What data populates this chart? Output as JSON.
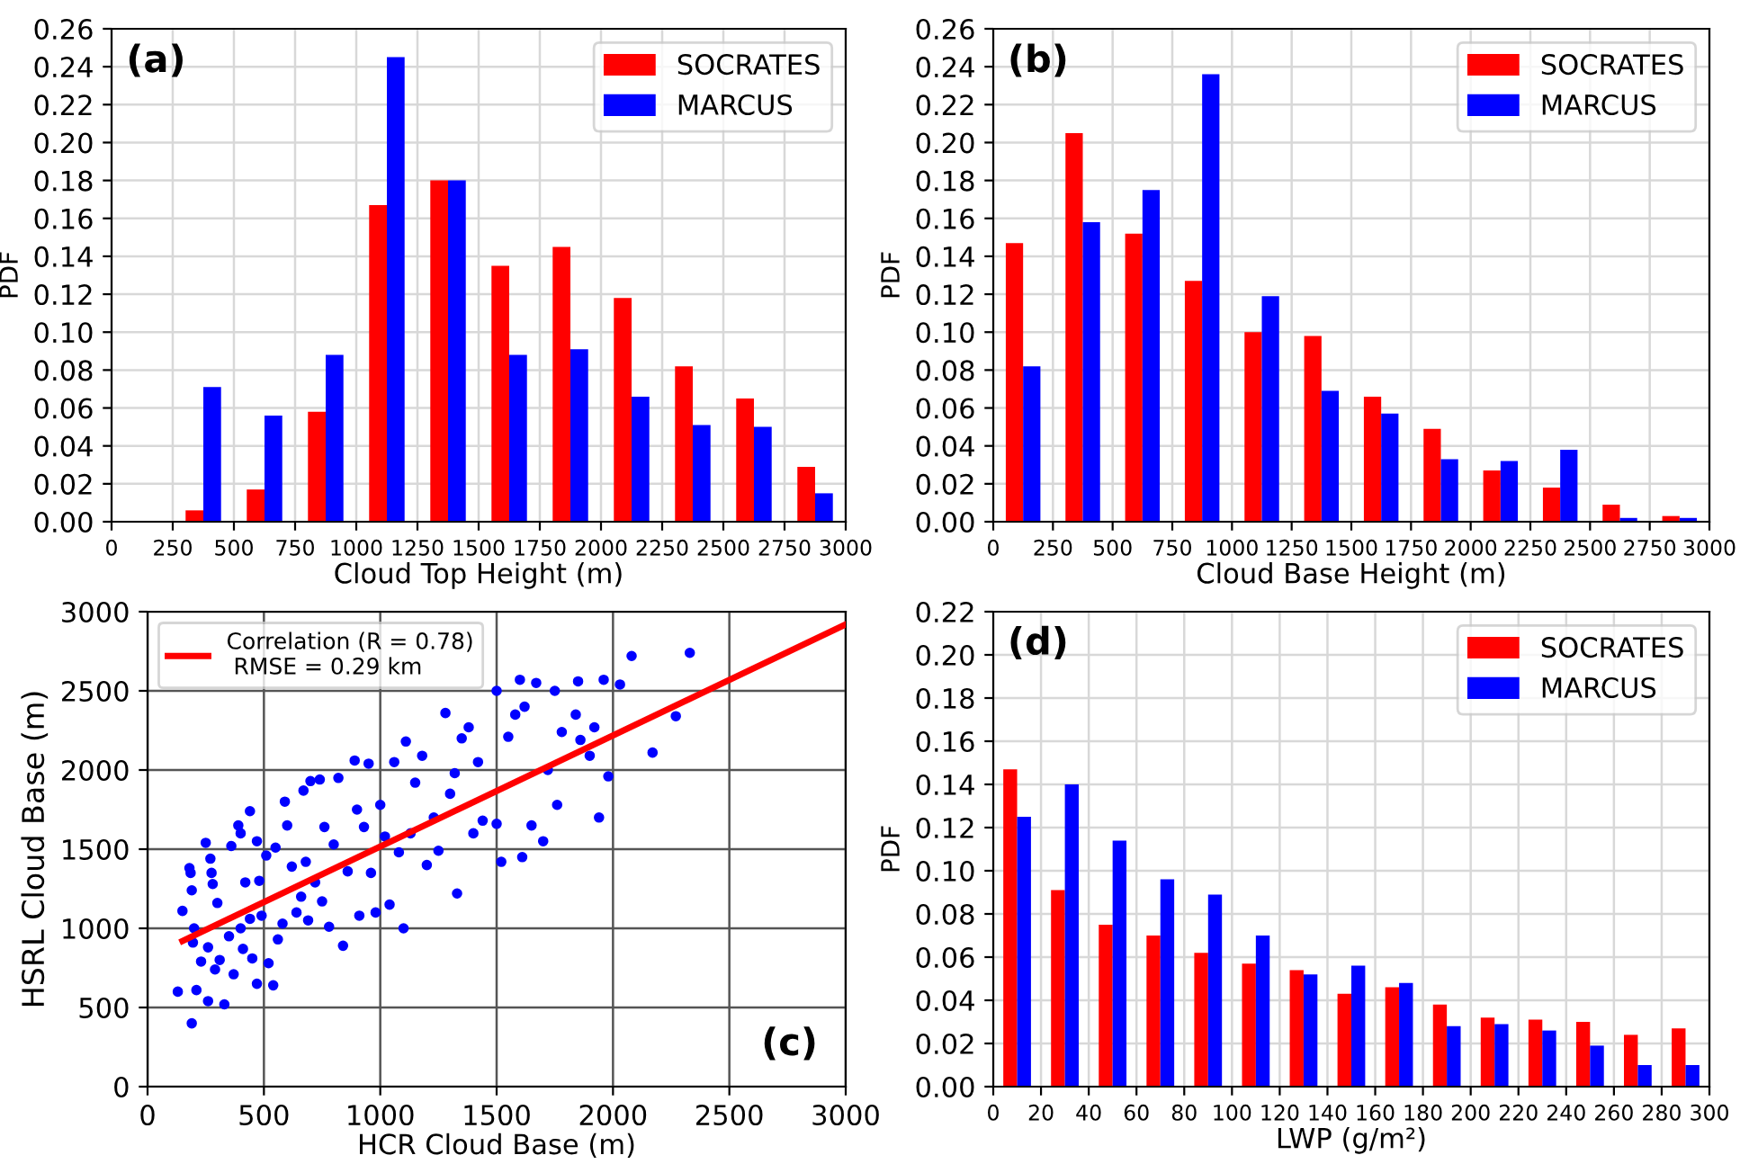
{
  "chart_data": [
    {
      "type": "bar",
      "xlabel": "Cloud Top Height (m)",
      "ylabel": "PDF",
      "annotations": [
        "(a)"
      ],
      "legend": "top right",
      "grid": true,
      "x": [
        375,
        625,
        875,
        1125,
        1375,
        1625,
        1875,
        2125,
        2375,
        2625,
        2875
      ],
      "series": [
        {
          "name": "SOCRATES",
          "color": "#ff0000",
          "values": [
            0.006,
            0.017,
            0.058,
            0.167,
            0.18,
            0.135,
            0.145,
            0.118,
            0.082,
            0.065,
            0.029
          ]
        },
        {
          "name": "MARCUS",
          "color": "#0000ff",
          "values": [
            0.071,
            0.056,
            0.088,
            0.245,
            0.18,
            0.088,
            0.091,
            0.066,
            0.051,
            0.05,
            0.015
          ]
        }
      ],
      "xlim": [
        0,
        3000
      ],
      "xticks": [
        0,
        250,
        500,
        750,
        1000,
        1250,
        1500,
        1750,
        2000,
        2250,
        2500,
        2750,
        3000
      ],
      "ylim": [
        0,
        0.26
      ],
      "yticks": [
        {
          "value": 0,
          "label": "0.00"
        },
        0.02,
        0.04,
        0.06,
        0.08,
        {
          "value": 0.1,
          "label": "0.10"
        },
        0.12,
        0.14,
        0.16,
        0.18,
        {
          "value": 0.2,
          "label": "0.20"
        },
        0.22,
        0.24,
        0.26
      ]
    },
    {
      "type": "bar",
      "xlabel": "Cloud Base Height (m)",
      "ylabel": "PDF",
      "annotations": [
        "(b)"
      ],
      "legend": "top right",
      "grid": true,
      "x": [
        125,
        375,
        625,
        875,
        1125,
        1375,
        1625,
        1875,
        2125,
        2375,
        2625,
        2875
      ],
      "series": [
        {
          "name": "SOCRATES",
          "color": "#ff0000",
          "values": [
            0.147,
            0.205,
            0.152,
            0.127,
            0.1,
            0.098,
            0.066,
            0.049,
            0.027,
            0.018,
            0.009,
            0.003
          ]
        },
        {
          "name": "MARCUS",
          "color": "#0000ff",
          "values": [
            0.082,
            0.158,
            0.175,
            0.236,
            0.119,
            0.069,
            0.057,
            0.033,
            0.032,
            0.038,
            0.002,
            0.002
          ]
        }
      ],
      "xlim": [
        0,
        3000
      ],
      "xticks": [
        0,
        250,
        500,
        750,
        1000,
        1250,
        1500,
        1750,
        2000,
        2250,
        2500,
        2750,
        3000
      ],
      "ylim": [
        0,
        0.26
      ],
      "yticks": [
        {
          "value": 0,
          "label": "0.00"
        },
        0.02,
        0.04,
        0.06,
        0.08,
        {
          "value": 0.1,
          "label": "0.10"
        },
        0.12,
        0.14,
        0.16,
        0.18,
        {
          "value": 0.2,
          "label": "0.20"
        },
        0.22,
        0.24,
        0.26
      ]
    },
    {
      "type": "scatter",
      "xlabel": "HCR Cloud Base (m)",
      "ylabel": "HSRL Cloud Base (m)",
      "annotations": [
        "(c)"
      ],
      "legend": "top left",
      "grid": true,
      "series": [
        {
          "type": "scatter",
          "color": "#0000ff",
          "marker": "circle",
          "x": [
            130,
            190,
            210,
            260,
            330,
            150,
            180,
            185,
            190,
            200,
            195,
            230,
            260,
            270,
            275,
            280,
            250,
            300,
            290,
            310,
            350,
            360,
            370,
            390,
            400,
            400,
            410,
            420,
            440,
            440,
            450,
            470,
            470,
            480,
            490,
            510,
            520,
            540,
            550,
            560,
            580,
            590,
            600,
            620,
            640,
            660,
            670,
            680,
            690,
            700,
            720,
            740,
            750,
            760,
            780,
            800,
            820,
            840,
            860,
            890,
            900,
            910,
            930,
            950,
            960,
            980,
            1000,
            1020,
            1040,
            1060,
            1080,
            1100,
            1110,
            1130,
            1150,
            1180,
            1200,
            1230,
            1250,
            1280,
            1300,
            1320,
            1330,
            1350,
            1380,
            1400,
            1420,
            1440,
            1500,
            1500,
            1520,
            1550,
            1580,
            1600,
            1610,
            1620,
            1650,
            1670,
            1700,
            1720,
            1750,
            1760,
            1780,
            1840,
            1850,
            1860,
            1900,
            1920,
            1940,
            1960,
            1980,
            2030,
            2080,
            2170,
            2270,
            2330
          ],
          "values": [
            600,
            400,
            610,
            540,
            520,
            1110,
            1380,
            1350,
            1240,
            1000,
            910,
            790,
            880,
            1440,
            1350,
            1280,
            1540,
            1160,
            740,
            800,
            950,
            1520,
            710,
            1650,
            1600,
            1000,
            870,
            1290,
            1740,
            1060,
            810,
            1550,
            650,
            1300,
            1080,
            1460,
            780,
            640,
            1510,
            930,
            1030,
            1800,
            1650,
            1390,
            1100,
            1200,
            1870,
            1420,
            1050,
            1930,
            1290,
            1940,
            1170,
            1640,
            1010,
            1530,
            1950,
            890,
            1360,
            2060,
            1750,
            1080,
            1640,
            2040,
            1350,
            1100,
            1780,
            1580,
            1150,
            2050,
            1480,
            1000,
            2180,
            1600,
            1920,
            2090,
            1400,
            1700,
            1490,
            2360,
            1850,
            1980,
            1220,
            2200,
            2270,
            1600,
            2050,
            1680,
            2500,
            1660,
            1420,
            2210,
            2350,
            2570,
            1450,
            2400,
            1650,
            2550,
            1550,
            2000,
            2500,
            1780,
            2240,
            2350,
            2560,
            2190,
            2090,
            2270,
            1700,
            2570,
            1960,
            2540,
            2720,
            2110,
            2340,
            2740
          ]
        },
        {
          "type": "line",
          "name": "Correlation (R = 0.78)\n RMSE = 0.29 km",
          "color": "#ff0000",
          "x": [
            150,
            3000
          ],
          "values": [
            920,
            2920
          ]
        }
      ],
      "xlim": [
        0,
        3000
      ],
      "xticks": [
        0,
        500,
        1000,
        1500,
        2000,
        2500,
        3000
      ],
      "ylim": [
        0,
        3000
      ],
      "yticks": [
        0,
        500,
        1000,
        1500,
        2000,
        2500,
        3000
      ]
    },
    {
      "type": "bar",
      "xlabel": "LWP (g/m²)",
      "ylabel": "PDF",
      "annotations": [
        "(d)"
      ],
      "legend": "top right",
      "grid": true,
      "x": [
        10,
        30,
        50,
        70,
        90,
        110,
        130,
        150,
        170,
        190,
        210,
        230,
        250,
        270,
        290
      ],
      "series": [
        {
          "name": "SOCRATES",
          "color": "#ff0000",
          "values": [
            0.147,
            0.091,
            0.075,
            0.07,
            0.062,
            0.057,
            0.054,
            0.043,
            0.046,
            0.038,
            0.032,
            0.031,
            0.03,
            0.024,
            0.027
          ]
        },
        {
          "name": "MARCUS",
          "color": "#0000ff",
          "values": [
            0.125,
            0.14,
            0.114,
            0.096,
            0.089,
            0.07,
            0.052,
            0.056,
            0.048,
            0.028,
            0.029,
            0.026,
            0.019,
            0.01,
            0.01
          ]
        }
      ],
      "xlim": [
        0,
        300
      ],
      "xticks": [
        0,
        20,
        40,
        60,
        80,
        100,
        120,
        140,
        160,
        180,
        200,
        220,
        240,
        260,
        280,
        300
      ],
      "ylim": [
        0,
        0.22
      ],
      "yticks": [
        {
          "value": 0,
          "label": "0.00"
        },
        0.02,
        0.04,
        0.06,
        0.08,
        {
          "value": 0.1,
          "label": "0.10"
        },
        0.12,
        0.14,
        0.16,
        0.18,
        {
          "value": 0.2,
          "label": "0.20"
        },
        0.22
      ]
    }
  ]
}
